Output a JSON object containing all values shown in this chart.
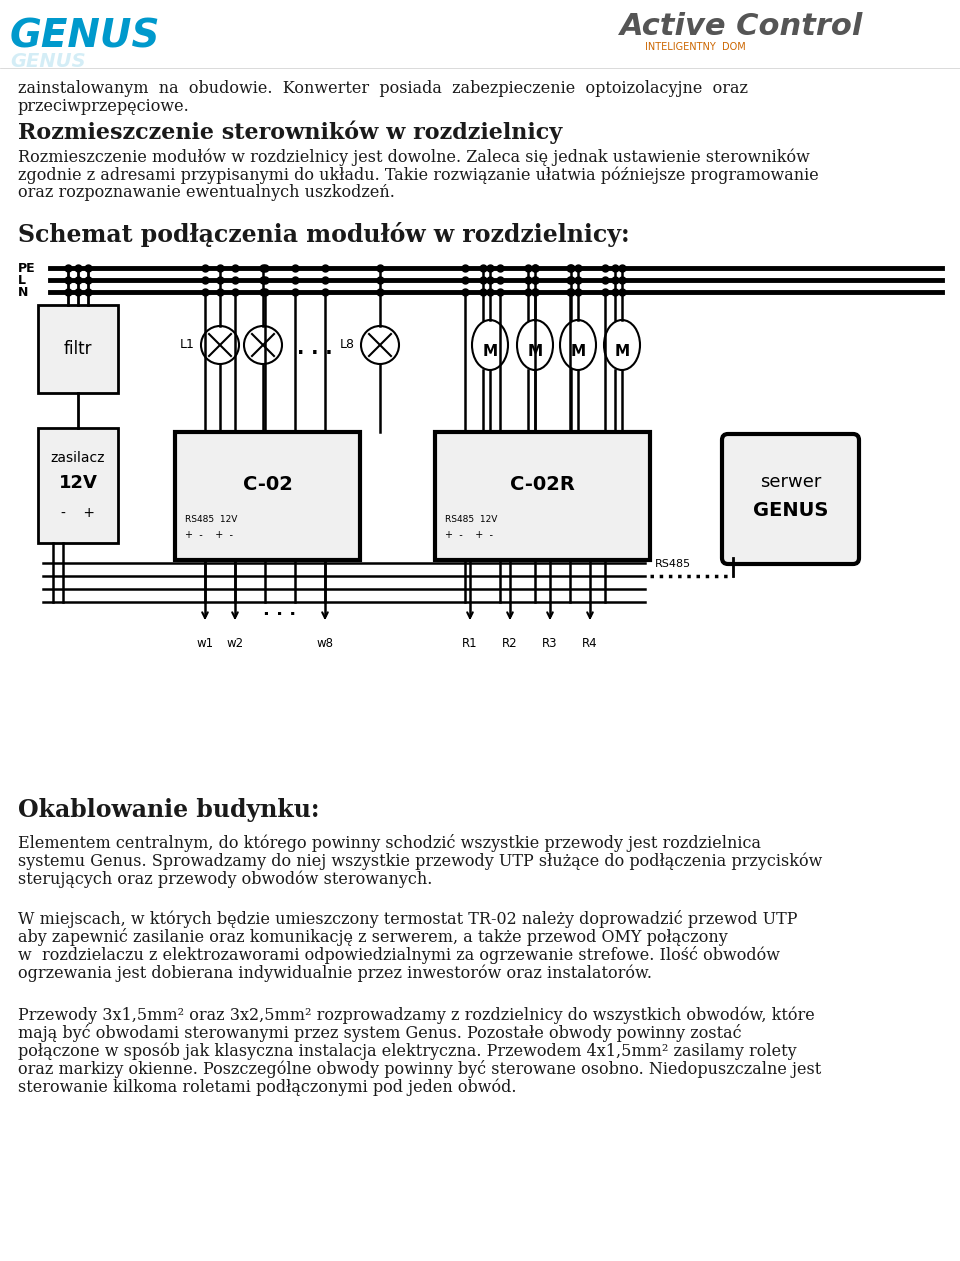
{
  "bg_color": "#ffffff",
  "text_color": "#1a1a1a",
  "title_text": "Schemat podłączenia modułów w rozdzielnicy:",
  "genus_color": "#0099cc",
  "line1_text": "zainstalowanym  na  obudowie.  Konwerter  posiada  zabezpieczenie  optoizolacyjne  oraz",
  "line2_text": "przeciwprzepęciowe.",
  "section1_title": "Rozmieszczenie sterowników w rozdzielnicy",
  "section2_title": "Okablowanie budynku:"
}
